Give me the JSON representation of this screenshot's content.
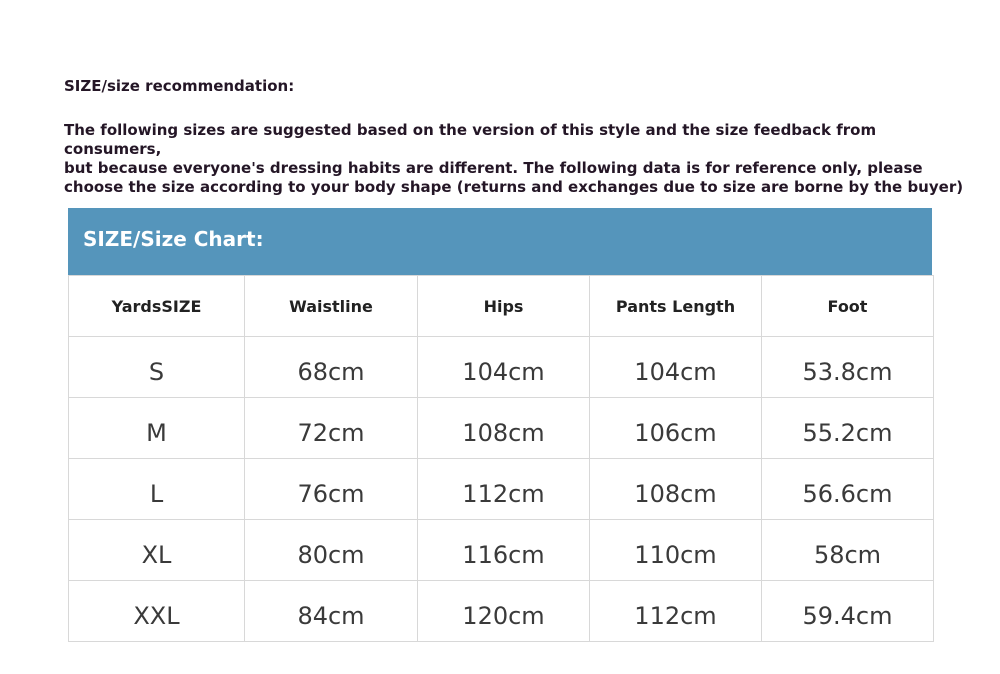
{
  "heading": "SIZE/size recommendation:",
  "note": "The following sizes are suggested based on the version of this style and the size feedback from consumers,\nbut because everyone's dressing habits are different. The following data is for reference only, please\nchoose the size according to your body shape (returns and exchanges due to size are borne by the buyer)",
  "chart_title": "SIZE/Size Chart:",
  "accent_color": "#5595bb",
  "columns": [
    "YardsSIZE",
    "Waistline",
    "Hips",
    "Pants Length",
    "Foot"
  ],
  "rows": [
    [
      "S",
      "68cm",
      "104cm",
      "104cm",
      "53.8cm"
    ],
    [
      "M",
      "72cm",
      "108cm",
      "106cm",
      "55.2cm"
    ],
    [
      "L",
      "76cm",
      "112cm",
      "108cm",
      "56.6cm"
    ],
    [
      "XL",
      "80cm",
      "116cm",
      "110cm",
      "58cm"
    ],
    [
      "XXL",
      "84cm",
      "120cm",
      "112cm",
      "59.4cm"
    ]
  ]
}
